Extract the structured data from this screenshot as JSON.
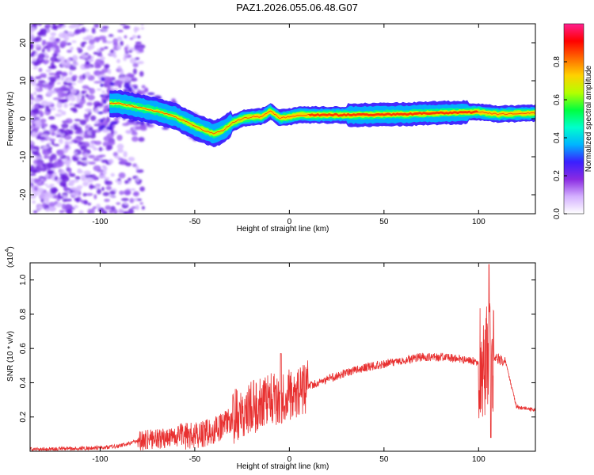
{
  "title": "PAZ1.2026.055.06.48.G07",
  "chart_data": [
    {
      "type": "heatmap",
      "name": "spectrogram",
      "xlabel": "Height of straight line (km)",
      "ylabel": "Frequency (Hz)",
      "xlim": [
        -137,
        130
      ],
      "ylim": [
        -25,
        25
      ],
      "x_ticks": [
        -100,
        -50,
        0,
        50,
        100
      ],
      "y_ticks": [
        -20,
        -10,
        0,
        10,
        20
      ],
      "colorbar": {
        "label": "Normalized spectral amplitude",
        "range": [
          0,
          1
        ],
        "ticks": [
          0.0,
          0.2,
          0.4,
          0.6,
          0.8
        ],
        "tick_labels": [
          "0.0",
          "0.2",
          "0.4",
          "0.6",
          "0.8"
        ],
        "colors": [
          "#ffffff",
          "#d4b0ff",
          "#8a2be2",
          "#3a1fff",
          "#00b4ff",
          "#00ffcc",
          "#00ff40",
          "#b4ff00",
          "#ffd200",
          "#ff6a00",
          "#ff0000",
          "#ff1f8f"
        ]
      },
      "ridge": {
        "x": [
          -90,
          -80,
          -70,
          -60,
          -50,
          -45,
          -40,
          -35,
          -30,
          -25,
          -20,
          -15,
          -10,
          -5,
          0,
          5,
          10,
          20,
          40,
          60,
          80,
          100,
          105,
          110,
          130
        ],
        "freq": [
          4,
          3,
          2,
          0.5,
          -2,
          -3,
          -4,
          -3,
          -1,
          0,
          0.5,
          0.5,
          2,
          0.2,
          0.5,
          1,
          1,
          1,
          1,
          1.2,
          1.5,
          1.8,
          1.5,
          1.2,
          1.5
        ]
      }
    },
    {
      "type": "line",
      "name": "snr",
      "xlabel": "Height of straight line (km)",
      "ylabel": "SNR (10 * v/v)",
      "y_multiplier_label": "(x10",
      "y_multiplier_exp": "4",
      "xlim": [
        -137,
        130
      ],
      "ylim": [
        0,
        1.1
      ],
      "x_ticks": [
        -100,
        -50,
        0,
        50,
        100
      ],
      "y_ticks": [
        0.2,
        0.4,
        0.6,
        0.8,
        1.0
      ],
      "y_tick_labels": [
        "0.2",
        "0.4",
        "0.6",
        "0.8",
        "1.0"
      ],
      "color": "#e83030",
      "envelope": {
        "x": [
          -137,
          -100,
          -90,
          -80,
          -70,
          -60,
          -50,
          -40,
          -35,
          -30,
          -20,
          -10,
          0,
          10,
          20,
          30,
          40,
          50,
          60,
          70,
          80,
          90,
          100,
          104,
          106,
          108,
          112,
          114,
          120,
          130
        ],
        "y": [
          0.01,
          0.02,
          0.03,
          0.06,
          0.07,
          0.08,
          0.09,
          0.12,
          0.15,
          0.2,
          0.25,
          0.3,
          0.33,
          0.38,
          0.42,
          0.46,
          0.49,
          0.51,
          0.53,
          0.55,
          0.55,
          0.54,
          0.52,
          0.53,
          0.55,
          0.55,
          0.53,
          0.53,
          0.26,
          0.24
        ]
      }
    }
  ]
}
